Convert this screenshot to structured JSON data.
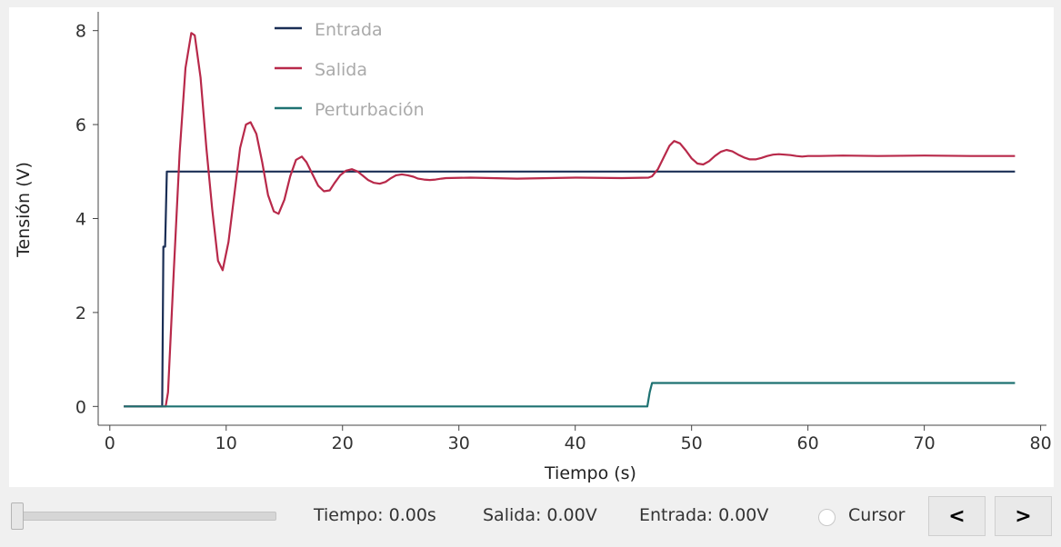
{
  "chart_data": {
    "type": "line",
    "title": "",
    "xlabel": "Tiempo (s)",
    "ylabel": "Tensión (V)",
    "xlim": [
      -1,
      80.5
    ],
    "ylim": [
      -0.4,
      8.4
    ],
    "xticks": [
      0,
      10,
      20,
      30,
      40,
      50,
      60,
      70,
      80
    ],
    "yticks": [
      0,
      2,
      4,
      6,
      8
    ],
    "legend_position": "top",
    "series": [
      {
        "name": "Entrada",
        "color": "#1a2e55",
        "x": [
          1.2,
          4.5,
          4.6,
          4.75,
          4.9,
          77.8
        ],
        "y": [
          0,
          0,
          3.4,
          3.4,
          5.0,
          5.0
        ]
      },
      {
        "name": "Salida",
        "color": "#b8294a",
        "x": [
          1.2,
          4.8,
          5.0,
          5.5,
          6.0,
          6.5,
          7.0,
          7.3,
          7.8,
          8.3,
          8.8,
          9.3,
          9.7,
          10.2,
          10.7,
          11.2,
          11.7,
          12.1,
          12.6,
          13.1,
          13.6,
          14.1,
          14.5,
          15.0,
          15.5,
          16.0,
          16.5,
          16.9,
          17.4,
          17.9,
          18.4,
          18.9,
          19.3,
          19.8,
          20.3,
          20.8,
          21.3,
          21.7,
          22.2,
          22.7,
          23.2,
          23.7,
          24.1,
          24.6,
          25.1,
          25.6,
          26.1,
          26.5,
          27.0,
          27.5,
          28.0,
          28.5,
          28.9,
          31.0,
          35.0,
          40.0,
          44.0,
          46.3,
          46.6,
          47.1,
          47.6,
          48.1,
          48.5,
          49.0,
          49.5,
          50.0,
          50.5,
          51.0,
          51.5,
          52.0,
          52.5,
          53.0,
          53.5,
          54.0,
          54.5,
          55.0,
          55.5,
          56.0,
          56.5,
          57.0,
          57.5,
          58.0,
          58.5,
          59.0,
          59.5,
          60.0,
          61.0,
          63.0,
          66.0,
          70.0,
          74.0,
          77.8
        ],
        "y": [
          0,
          0,
          0.3,
          2.9,
          5.4,
          7.2,
          7.95,
          7.9,
          7.0,
          5.5,
          4.2,
          3.1,
          2.9,
          3.5,
          4.5,
          5.5,
          6.0,
          6.05,
          5.8,
          5.2,
          4.5,
          4.15,
          4.1,
          4.4,
          4.9,
          5.25,
          5.32,
          5.2,
          4.95,
          4.7,
          4.58,
          4.6,
          4.75,
          4.92,
          5.02,
          5.05,
          5.0,
          4.92,
          4.82,
          4.76,
          4.74,
          4.78,
          4.85,
          4.92,
          4.94,
          4.92,
          4.89,
          4.85,
          4.83,
          4.82,
          4.83,
          4.85,
          4.86,
          4.87,
          4.85,
          4.87,
          4.86,
          4.87,
          4.9,
          5.05,
          5.3,
          5.55,
          5.65,
          5.6,
          5.45,
          5.28,
          5.17,
          5.15,
          5.22,
          5.33,
          5.42,
          5.46,
          5.43,
          5.36,
          5.3,
          5.26,
          5.26,
          5.29,
          5.33,
          5.36,
          5.37,
          5.36,
          5.35,
          5.33,
          5.32,
          5.33,
          5.33,
          5.34,
          5.33,
          5.34,
          5.33,
          5.33
        ]
      },
      {
        "name": "Perturbación",
        "color": "#1e7272",
        "x": [
          1.2,
          46.2,
          46.4,
          46.6,
          77.8
        ],
        "y": [
          0,
          0,
          0.3,
          0.5,
          0.5
        ]
      }
    ]
  },
  "legend": [
    "Entrada",
    "Salida",
    "Perturbación"
  ],
  "controls": {
    "slider_value": 0,
    "time_readout": "Tiempo: 0.00s",
    "output_readout": "Salida: 0.00V",
    "input_readout": "Entrada: 0.00V",
    "cursor_label": "Cursor",
    "cursor_checked": false,
    "prev_label": "<",
    "next_label": ">"
  }
}
